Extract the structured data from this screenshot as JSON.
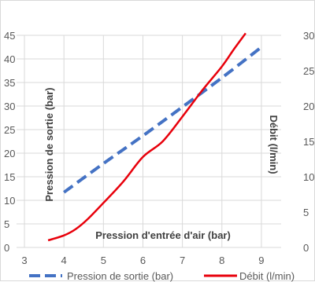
{
  "chart_data": {
    "type": "line",
    "title": "",
    "xlabel": "Pression d'entrée d'air  (bar)",
    "ylabel": "Pression de sortie (bar)",
    "y2label": "Débit (l/min)",
    "x_ticks": [
      3,
      4,
      5,
      6,
      7,
      8,
      9
    ],
    "y_ticks": [
      0,
      5,
      10,
      15,
      20,
      25,
      30,
      35,
      40,
      45
    ],
    "y2_ticks": [
      0,
      5,
      10,
      15,
      20,
      25,
      30
    ],
    "xlim": [
      2.8,
      9.5
    ],
    "ylim": [
      0,
      45
    ],
    "y2lim": [
      0,
      30
    ],
    "grid": true,
    "legend_position": "bottom",
    "series": [
      {
        "name": "Pression de sortie (bar)",
        "axis": "left",
        "style": "dashed",
        "color": "#4472C4",
        "x": [
          4.0,
          5.0,
          6.0,
          7.0,
          8.0,
          9.0
        ],
        "y": [
          11.7,
          17.8,
          23.7,
          29.8,
          36.0,
          42.5
        ]
      },
      {
        "name": "Débit (l/min)",
        "axis": "right",
        "style": "solid",
        "color": "#E8000B",
        "x": [
          3.6,
          4.0,
          4.3,
          4.6,
          5.0,
          5.5,
          6.0,
          6.5,
          7.0,
          7.5,
          8.0,
          8.3,
          8.6
        ],
        "y": [
          1.0,
          1.7,
          2.6,
          4.0,
          6.3,
          9.3,
          12.8,
          15.0,
          18.5,
          22.2,
          25.6,
          28.0,
          30.3
        ]
      }
    ]
  }
}
